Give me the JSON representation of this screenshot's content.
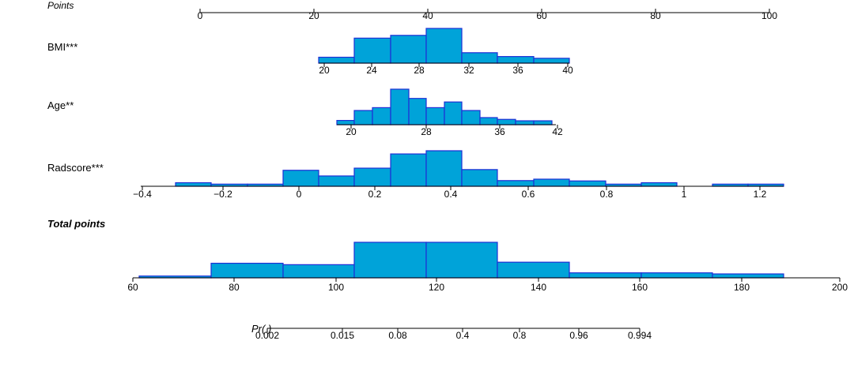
{
  "chart_data": {
    "type": "nomogram",
    "colors": {
      "bar_fill": "#00a3d9",
      "bar_stroke": "#1f2fd6",
      "axis": "#000000"
    },
    "points": {
      "label": "Points",
      "ticks": [
        "0",
        "20",
        "40",
        "60",
        "80",
        "100"
      ]
    },
    "bmi": {
      "label": "BMI***",
      "ticks": [
        "20",
        "24",
        "28",
        "32",
        "36",
        "40"
      ],
      "histogram_relative_heights": [
        0.17,
        0.72,
        0.8,
        1.0,
        0.3,
        0.19,
        0.14
      ]
    },
    "age": {
      "label": "Age**",
      "ticks": [
        "20",
        "28",
        "36",
        "42"
      ],
      "histogram_relative_heights": [
        0.12,
        0.4,
        0.48,
        1.0,
        0.74,
        0.48,
        0.64,
        0.4,
        0.2,
        0.15,
        0.11,
        0.11
      ]
    },
    "radscore": {
      "label": "Radscore***",
      "ticks": [
        "−0.4",
        "−0.2",
        "0",
        "0.2",
        "0.4",
        "0.6",
        "0.8",
        "1",
        "1.2"
      ],
      "histogram_relative_heights": [
        0.1,
        0.06,
        0.06,
        0.45,
        0.29,
        0.51,
        0.91,
        1.0,
        0.47,
        0.16,
        0.2,
        0.15,
        0.06,
        0.1,
        0.0,
        0.06,
        0.06
      ]
    },
    "total_points": {
      "label": "Total points",
      "ticks": [
        "60",
        "80",
        "100",
        "120",
        "140",
        "160",
        "180",
        "200"
      ],
      "histogram_relative_heights": [
        0.05,
        0.41,
        0.37,
        1.0,
        1.0,
        0.44,
        0.14,
        0.14,
        0.11
      ]
    },
    "probability": {
      "label": "Pr( )",
      "ticks": [
        "0.002",
        "0.015",
        "0.08",
        "0.4",
        "0.8",
        "0.96",
        "0.994"
      ]
    }
  }
}
